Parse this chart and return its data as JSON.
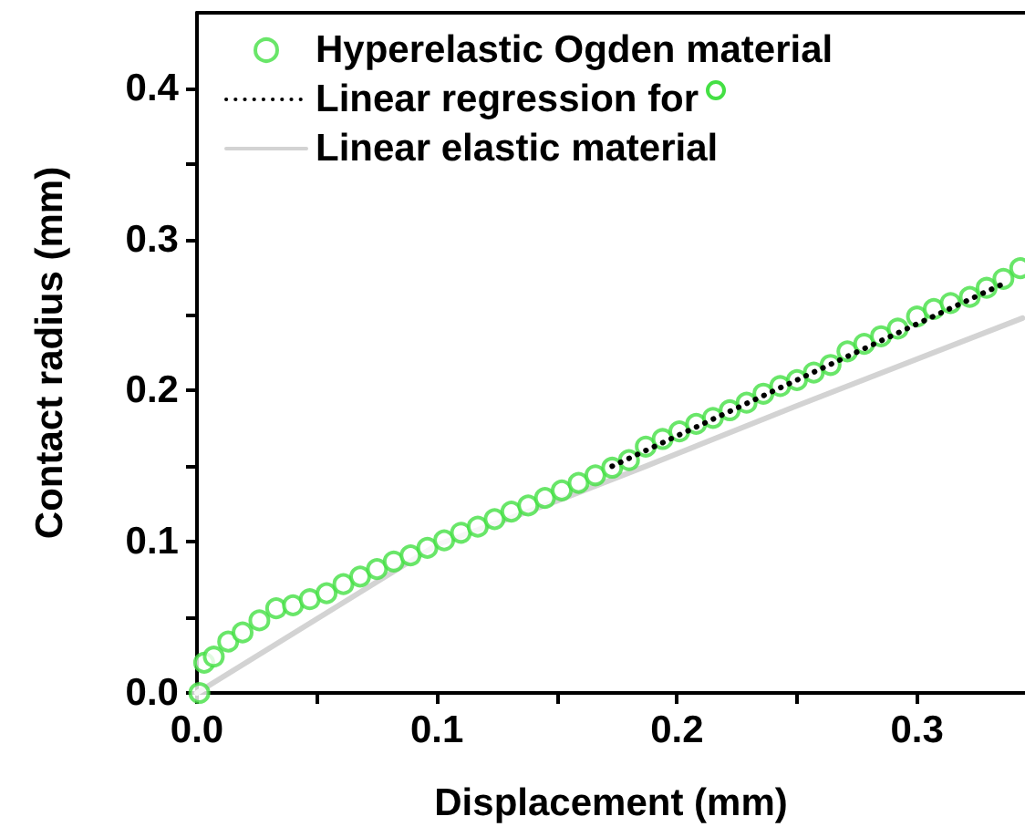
{
  "chart_data": {
    "type": "scatter",
    "xlabel": "Displacement (mm)",
    "ylabel": "Contact radius (mm)",
    "xlim": [
      0,
      0.345
    ],
    "ylim": [
      0,
      0.45
    ],
    "xticks": [
      {
        "value": 0,
        "label": "0.0"
      },
      {
        "value": 0.05,
        "label": null
      },
      {
        "value": 0.1,
        "label": "0.1"
      },
      {
        "value": 0.15,
        "label": null
      },
      {
        "value": 0.2,
        "label": "0.2"
      },
      {
        "value": 0.25,
        "label": null
      },
      {
        "value": 0.3,
        "label": "0.3"
      }
    ],
    "yticks": [
      {
        "value": 0,
        "label": "0.0"
      },
      {
        "value": 0.05,
        "label": null
      },
      {
        "value": 0.1,
        "label": "0.1"
      },
      {
        "value": 0.15,
        "label": null
      },
      {
        "value": 0.2,
        "label": "0.2"
      },
      {
        "value": 0.25,
        "label": null
      },
      {
        "value": 0.3,
        "label": "0.3"
      },
      {
        "value": 0.35,
        "label": null
      },
      {
        "value": 0.4,
        "label": "0.4"
      }
    ],
    "grid": false,
    "legend": "top left",
    "series": [
      {
        "name": "Hyperelastic Ogden material",
        "marker": "circle",
        "color": "#44e044",
        "x": [
          0.001,
          0.003,
          0.007,
          0.013,
          0.019,
          0.026,
          0.033,
          0.04,
          0.047,
          0.054,
          0.061,
          0.068,
          0.075,
          0.082,
          0.089,
          0.096,
          0.103,
          0.11,
          0.117,
          0.124,
          0.131,
          0.138,
          0.145,
          0.152,
          0.159,
          0.166,
          0.173,
          0.18,
          0.187,
          0.194,
          0.201,
          0.208,
          0.215,
          0.222,
          0.229,
          0.236,
          0.243,
          0.25,
          0.257,
          0.264,
          0.271,
          0.278,
          0.285,
          0.292,
          0.3,
          0.307,
          0.314,
          0.322,
          0.329,
          0.336,
          0.343
        ],
        "values": [
          0.0,
          0.02,
          0.024,
          0.034,
          0.04,
          0.048,
          0.056,
          0.058,
          0.062,
          0.066,
          0.072,
          0.077,
          0.082,
          0.087,
          0.091,
          0.096,
          0.101,
          0.106,
          0.11,
          0.115,
          0.12,
          0.124,
          0.129,
          0.134,
          0.139,
          0.144,
          0.149,
          0.154,
          0.163,
          0.168,
          0.173,
          0.178,
          0.182,
          0.187,
          0.192,
          0.198,
          0.203,
          0.207,
          0.212,
          0.217,
          0.226,
          0.231,
          0.236,
          0.241,
          0.249,
          0.254,
          0.258,
          0.262,
          0.268,
          0.274,
          0.281
        ]
      },
      {
        "name": "Linear regression for",
        "type": "line",
        "marker": "none",
        "line_style": "dotted",
        "color": "#000000",
        "x": [
          0.173,
          0.335
        ],
        "values": [
          0.15,
          0.27
        ]
      },
      {
        "name": "Linear elastic material",
        "type": "line",
        "marker": "none",
        "line_style": "solid",
        "color": "#d3d3d3",
        "x": [
          0,
          0.1,
          0.15,
          0.187,
          0.25,
          0.344
        ],
        "values": [
          0,
          0.098,
          0.127,
          0.15,
          0.19,
          0.248
        ]
      }
    ]
  }
}
